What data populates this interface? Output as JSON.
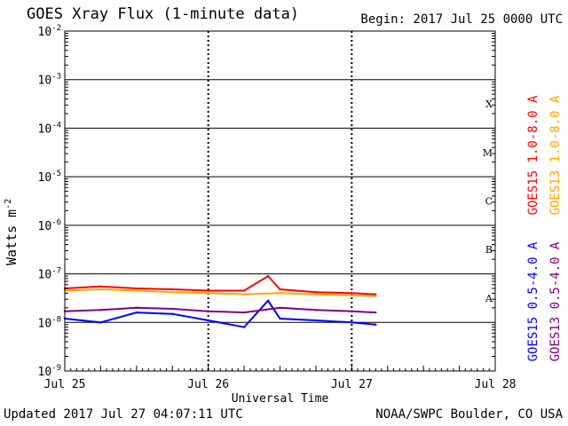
{
  "header": {
    "title": "GOES Xray Flux (1-minute data)",
    "begin": "Begin:  2017 Jul 25 0000 UTC"
  },
  "footer": {
    "updated": "Updated 2017 Jul 27 04:07:11 UTC",
    "credit": "NOAA/SWPC Boulder, CO USA"
  },
  "colors": {
    "goes15_long": "#ff0000",
    "goes13_long": "#ffa500",
    "goes15_short": "#0000ff",
    "goes13_short": "#800080"
  },
  "chart_data": {
    "type": "line",
    "title": "GOES Xray Flux (1-minute data)",
    "xlabel": "Universal Time",
    "ylabel": "Watts m",
    "ylabel_sup": "-2",
    "y_scale": "log",
    "ylim": [
      1e-09,
      0.01
    ],
    "xlim": [
      "2017-07-25T00:00",
      "2017-07-28T00:00"
    ],
    "x_ticks": [
      "Jul 25",
      "Jul 26",
      "Jul 27",
      "Jul 28"
    ],
    "y_ticks": [
      {
        "base": "10",
        "exp": "-9"
      },
      {
        "base": "10",
        "exp": "-8"
      },
      {
        "base": "10",
        "exp": "-7"
      },
      {
        "base": "10",
        "exp": "-6"
      },
      {
        "base": "10",
        "exp": "-5"
      },
      {
        "base": "10",
        "exp": "-4"
      },
      {
        "base": "10",
        "exp": "-3"
      },
      {
        "base": "10",
        "exp": "-2"
      }
    ],
    "flare_classes": [
      "A",
      "B",
      "C",
      "M",
      "X"
    ],
    "grid": true,
    "legend": "right-vertical",
    "series": [
      {
        "name": "GOES15 1.0-8.0 A",
        "color": "#ff0000",
        "x": [
          "2017-07-25T00:00",
          "2017-07-25T06:00",
          "2017-07-25T12:00",
          "2017-07-25T18:00",
          "2017-07-26T00:00",
          "2017-07-26T06:00",
          "2017-07-26T10:00",
          "2017-07-26T12:00",
          "2017-07-26T18:00",
          "2017-07-27T00:00",
          "2017-07-27T04:00"
        ],
        "values": [
          5e-08,
          5.5e-08,
          5e-08,
          4.8e-08,
          4.5e-08,
          4.5e-08,
          9e-08,
          4.8e-08,
          4.2e-08,
          4e-08,
          3.8e-08
        ]
      },
      {
        "name": "GOES13 1.0-8.0 A",
        "color": "#ffa500",
        "x": [
          "2017-07-25T00:00",
          "2017-07-25T06:00",
          "2017-07-25T12:00",
          "2017-07-25T18:00",
          "2017-07-26T00:00",
          "2017-07-26T06:00",
          "2017-07-26T12:00",
          "2017-07-26T18:00",
          "2017-07-27T00:00",
          "2017-07-27T04:00"
        ],
        "values": [
          4.5e-08,
          4.8e-08,
          4.5e-08,
          4.2e-08,
          4e-08,
          3.8e-08,
          4e-08,
          3.8e-08,
          3.6e-08,
          3.5e-08
        ]
      },
      {
        "name": "GOES15 0.5-4.0 A",
        "color": "#0000ff",
        "x": [
          "2017-07-25T00:00",
          "2017-07-25T06:00",
          "2017-07-25T12:00",
          "2017-07-25T18:00",
          "2017-07-26T00:00",
          "2017-07-26T06:00",
          "2017-07-26T10:00",
          "2017-07-26T12:00",
          "2017-07-26T18:00",
          "2017-07-27T00:00",
          "2017-07-27T04:00"
        ],
        "values": [
          1.2e-08,
          1e-08,
          1.6e-08,
          1.5e-08,
          1.1e-08,
          8e-09,
          2.8e-08,
          1.2e-08,
          1.1e-08,
          1e-08,
          9e-09
        ]
      },
      {
        "name": "GOES13 0.5-4.0 A",
        "color": "#800080",
        "x": [
          "2017-07-25T00:00",
          "2017-07-25T06:00",
          "2017-07-25T12:00",
          "2017-07-25T18:00",
          "2017-07-26T00:00",
          "2017-07-26T06:00",
          "2017-07-26T12:00",
          "2017-07-26T18:00",
          "2017-07-27T00:00",
          "2017-07-27T04:00"
        ],
        "values": [
          1.7e-08,
          1.8e-08,
          2e-08,
          1.9e-08,
          1.7e-08,
          1.6e-08,
          2e-08,
          1.8e-08,
          1.7e-08,
          1.6e-08
        ]
      }
    ]
  }
}
